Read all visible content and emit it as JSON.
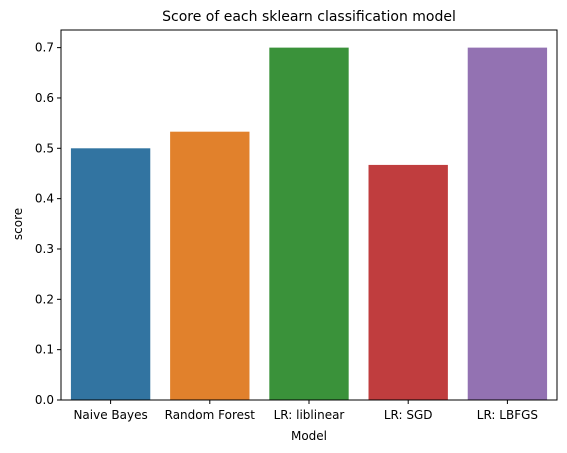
{
  "chart_data": {
    "type": "bar",
    "title": "Score of each sklearn classification model",
    "xlabel": "Model",
    "ylabel": "score",
    "categories": [
      "Naive Bayes",
      "Random Forest",
      "LR: liblinear",
      "LR: SGD",
      "LR: LBFGS"
    ],
    "values": [
      0.5,
      0.533,
      0.7,
      0.467,
      0.7
    ],
    "colors": [
      "#3274a1",
      "#e1812c",
      "#3a923a",
      "#c03d3e",
      "#9372b2"
    ],
    "ylim": [
      0,
      0.735
    ],
    "yticks": [
      "0.0",
      "0.1",
      "0.2",
      "0.3",
      "0.4",
      "0.5",
      "0.6",
      "0.7"
    ],
    "grid": false,
    "legend": "none"
  }
}
